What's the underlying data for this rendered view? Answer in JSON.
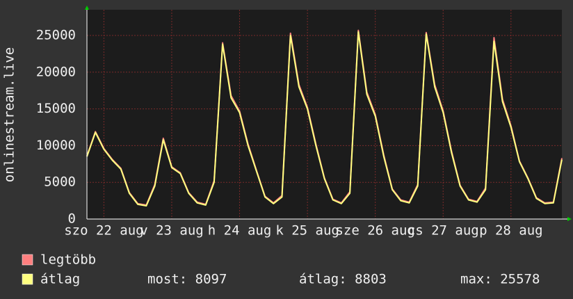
{
  "chart_data": {
    "type": "line",
    "y_label": "onlinestream.live",
    "categories": [
      null,
      null,
      "szo 22 aug",
      null,
      null,
      null,
      null,
      null,
      null,
      null,
      "v 23 aug",
      null,
      null,
      null,
      null,
      null,
      null,
      null,
      "h 24 aug",
      null,
      null,
      null,
      null,
      null,
      null,
      null,
      "k 25 aug",
      null,
      null,
      null,
      null,
      null,
      null,
      null,
      "sze 26 aug",
      null,
      null,
      null,
      null,
      null,
      null,
      null,
      "cs 27 aug",
      null,
      null,
      null,
      null,
      null,
      null,
      null,
      "p 28 aug",
      null,
      null,
      null,
      null,
      null,
      null
    ],
    "series": [
      {
        "name": "legtöbb",
        "color": "#ff7f7f",
        "values": [
          8600,
          11900,
          9600,
          8100,
          6900,
          3600,
          2100,
          1900,
          4700,
          11000,
          7100,
          6300,
          3600,
          2300,
          2000,
          5200,
          24000,
          16800,
          14700,
          10200,
          6600,
          3100,
          2200,
          3200,
          25300,
          18300,
          15200,
          10200,
          5600,
          2700,
          2200,
          3700,
          25700,
          17300,
          14200,
          8700,
          4100,
          2600,
          2300,
          4700,
          25400,
          18300,
          14700,
          9200,
          4600,
          2700,
          2400,
          4200,
          24700,
          16300,
          12700,
          7900,
          5600,
          2900,
          2200,
          2300,
          8300
        ]
      },
      {
        "name": "átlag",
        "color": "#ffff80",
        "values": [
          8500,
          11800,
          9500,
          8000,
          6800,
          3500,
          2000,
          1800,
          4500,
          10800,
          7000,
          6200,
          3500,
          2200,
          1900,
          5000,
          23800,
          16500,
          14500,
          10000,
          6500,
          3000,
          2100,
          3000,
          25000,
          18000,
          15000,
          10000,
          5500,
          2600,
          2100,
          3500,
          25500,
          17000,
          14000,
          8500,
          4000,
          2500,
          2200,
          4500,
          25200,
          18000,
          14500,
          9000,
          4500,
          2600,
          2300,
          4000,
          24200,
          16000,
          12500,
          7800,
          5500,
          2800,
          2100,
          2200,
          8100
        ]
      }
    ],
    "ylim": [
      0,
      28500
    ],
    "yticks": [
      0,
      5000,
      10000,
      15000,
      20000,
      25000
    ],
    "grid": true,
    "stats": [
      "most: 8097",
      "átlag: 8803",
      "max: 25578"
    ]
  }
}
